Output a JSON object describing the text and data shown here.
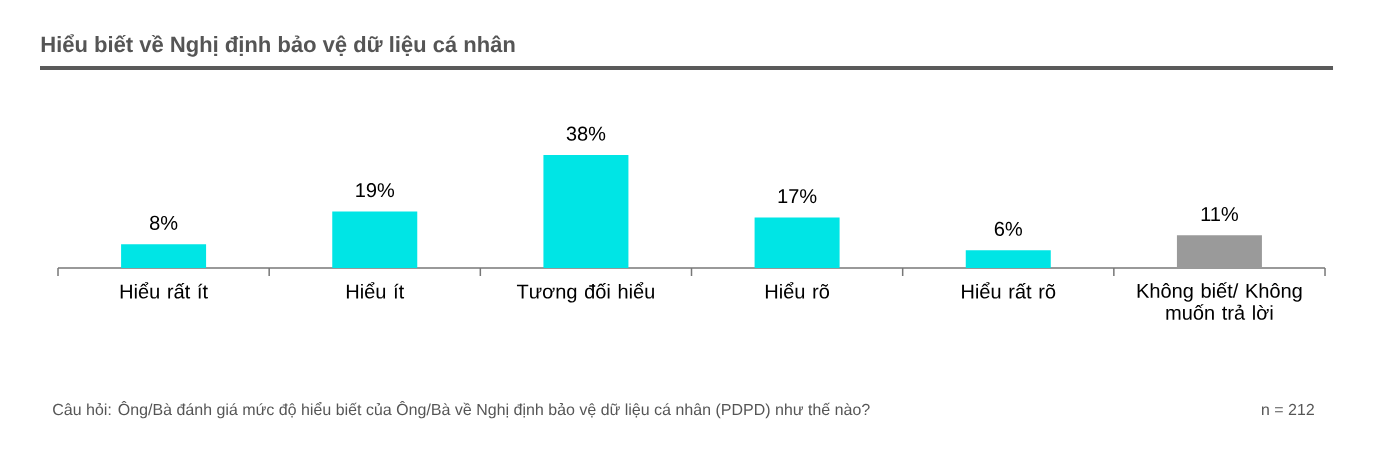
{
  "chart_data": {
    "type": "bar",
    "title": "Hiểu biết về Nghị định bảo vệ dữ liệu cá nhân",
    "categories": [
      "Hiểu rất ít",
      "Hiểu ít",
      "Tương đối hiểu",
      "Hiểu rõ",
      "Hiểu rất rõ",
      "Không biết/ Không muốn trả lời"
    ],
    "values": [
      8,
      19,
      38,
      17,
      6,
      11
    ],
    "value_labels": [
      "8%",
      "19%",
      "38%",
      "17%",
      "6%",
      "11%"
    ],
    "colors": [
      "#00e5e5",
      "#00e5e5",
      "#00e5e5",
      "#00e5e5",
      "#00e5e5",
      "#9a9a9a"
    ],
    "annotations": [
      "Câu hỏi: Ông/Bà đánh giá mức độ hiểu biết của Ông/Bà về Nghị định bảo vệ dữ liệu cá nhân (PDPD) như thế nào?",
      "n = 212"
    ]
  }
}
